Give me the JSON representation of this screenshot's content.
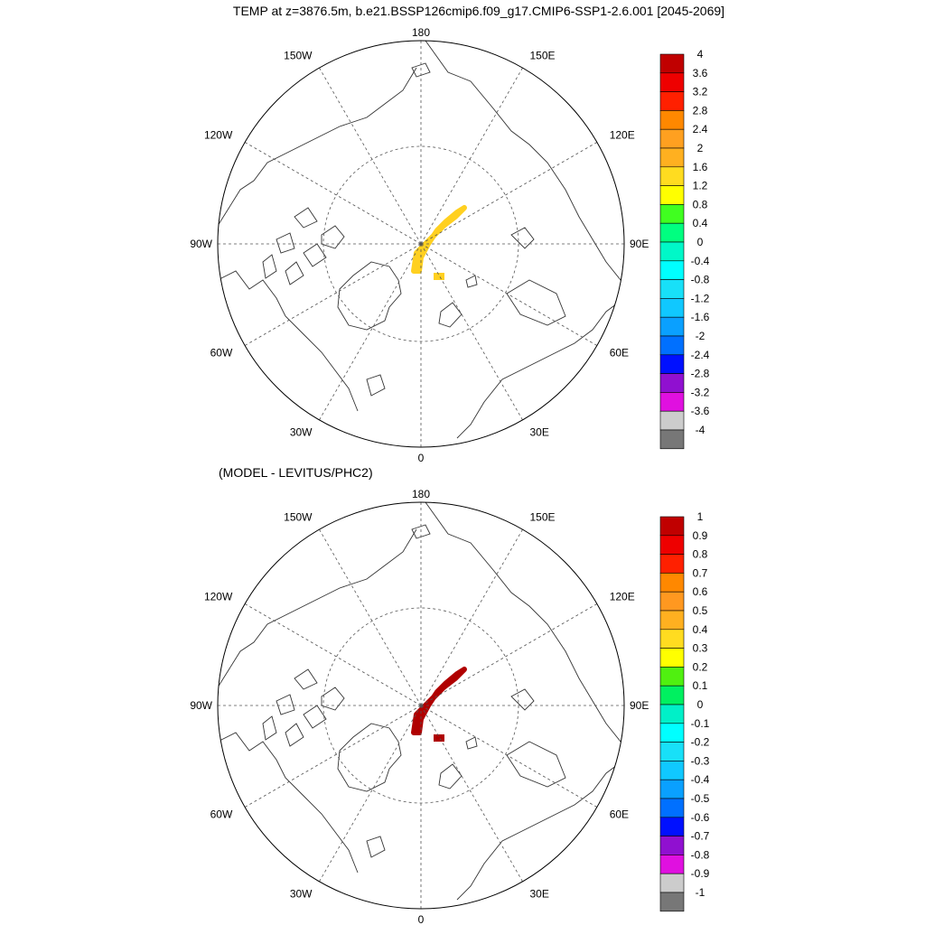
{
  "title": "TEMP at z=3876.5m, b.e21.BSSP126cmip6.f09_g17.CMIP6-SSP1-2.6.001 [2045-2069]",
  "subtitle": "(MODEL - LEVITUS/PHC2)",
  "longitude_labels": [
    "180",
    "150E",
    "120E",
    "90E",
    "60E",
    "30E",
    "0",
    "30W",
    "60W",
    "90W",
    "120W",
    "150W"
  ],
  "colors": {
    "top_scale": [
      "#777777",
      "#cccccc",
      "#e010e0",
      "#9010d0",
      "#0010ff",
      "#0070ff",
      "#0aa0ff",
      "#10c8ff",
      "#18e0f8",
      "#00ffff",
      "#00f8c8",
      "#00ff80",
      "#40ff20",
      "#ffff00",
      "#ffdc20",
      "#ffb020",
      "#ffa020",
      "#ff8800",
      "#ff2000",
      "#ee0000",
      "#c00000"
    ],
    "bottom_scale": [
      "#777777",
      "#cccccc",
      "#e010e0",
      "#9010d0",
      "#0010ff",
      "#0070ff",
      "#0aa0ff",
      "#10c8ff",
      "#18e0f8",
      "#00ffff",
      "#00f0c8",
      "#00f060",
      "#50f010",
      "#ffff00",
      "#ffdc20",
      "#ffb020",
      "#ff9820",
      "#ff8800",
      "#ff2000",
      "#ee0000",
      "#c00000"
    ],
    "top_anomaly": "#ffd020",
    "bottom_anomaly": "#b00000",
    "coastline": "#333333",
    "grid": "#555555"
  },
  "maps": [
    {
      "id": "top",
      "colorbar_labels": [
        "4",
        "3.6",
        "3.2",
        "2.8",
        "2.4",
        "2",
        "1.6",
        "1.2",
        "0.8",
        "0.4",
        "0",
        "-0.4",
        "-0.8",
        "-1.2",
        "-1.6",
        "-2",
        "-2.4",
        "-2.8",
        "-3.2",
        "-3.6",
        "-4"
      ]
    },
    {
      "id": "bottom",
      "colorbar_labels": [
        "1",
        "0.9",
        "0.8",
        "0.7",
        "0.6",
        "0.5",
        "0.4",
        "0.3",
        "0.2",
        "0.1",
        "0",
        "-0.1",
        "-0.2",
        "-0.3",
        "-0.4",
        "-0.5",
        "-0.6",
        "-0.7",
        "-0.8",
        "-0.9",
        "-1"
      ]
    }
  ]
}
